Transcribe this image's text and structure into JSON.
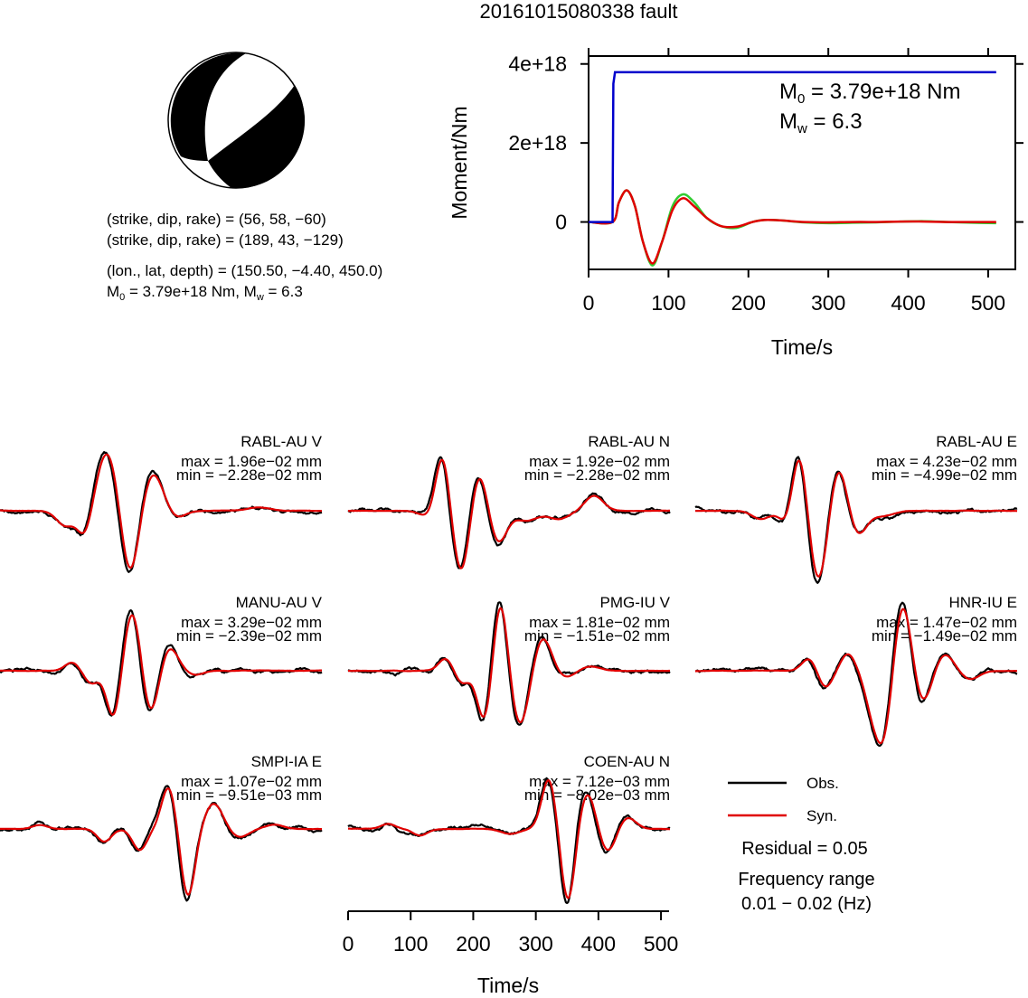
{
  "title": "20161015080338 fault",
  "mechanism": {
    "lines": [
      "(strike, dip, rake) = (56, 58, −60)",
      "(strike, dip, rake) = (189, 43, −129)",
      "(lon., lat, depth) = (150.50, −4.40, 450.0)"
    ],
    "moment_line_prefix": "M",
    "moment_line_sub": "0",
    "moment_line_mid": " = 3.79e+18 Nm, M",
    "moment_line_sub2": "w",
    "moment_line_suffix": " = 6.3"
  },
  "moment_panel": {
    "ylabel": "Moment/Nm",
    "xlabel": "Time/s",
    "yticks": [
      "0",
      "2e+18",
      "4e+18"
    ],
    "xticks": [
      "0",
      "100",
      "200",
      "300",
      "400",
      "500"
    ],
    "m0_prefix": "M",
    "m0_sub": "0",
    "m0_value": " = 3.79e+18 Nm",
    "mw_prefix": "M",
    "mw_sub": "w",
    "mw_value": " = 6.3"
  },
  "waveform_panels": [
    {
      "station": "RABL-AU V",
      "max": "max = 1.96e−02 mm",
      "min": "min = −2.28e−02 mm"
    },
    {
      "station": "RABL-AU N",
      "max": "max = 1.92e−02 mm",
      "min": "min = −2.28e−02 mm"
    },
    {
      "station": "RABL-AU E",
      "max": "max = 4.23e−02 mm",
      "min": "min = −4.99e−02 mm"
    },
    {
      "station": "MANU-AU V",
      "max": "max = 3.29e−02 mm",
      "min": "min = −2.39e−02 mm"
    },
    {
      "station": "PMG-IU V",
      "max": "max = 1.81e−02 mm",
      "min": "min = −1.51e−02 mm"
    },
    {
      "station": "HNR-IU E",
      "max": "max = 1.47e−02 mm",
      "min": "min = −1.49e−02 mm"
    },
    {
      "station": "SMPI-IA E",
      "max": "max = 1.07e−02 mm",
      "min": "min = −9.51e−03 mm"
    },
    {
      "station": "COEN-AU N",
      "max": "max = 7.12e−03 mm",
      "min": "min = −8.02e−03 mm"
    }
  ],
  "bottom_axis": {
    "xlabel": "Time/s",
    "xticks": [
      "0",
      "100",
      "200",
      "300",
      "400",
      "500"
    ]
  },
  "legend": {
    "obs": "Obs.",
    "syn": "Syn."
  },
  "residual": "Residual = 0.05",
  "frequency_label": "Frequency range",
  "frequency_value": "0.01 − 0.02 (Hz)",
  "colors": {
    "obs": "#000000",
    "syn": "#e00000",
    "moment": "#0000cc",
    "stf_green": "#33cc33",
    "stf_red": "#e00000"
  },
  "chart_data": [
    {
      "type": "line",
      "title": "",
      "xlabel": "Time/s",
      "ylabel": "Moment/Nm",
      "xlim": [
        0,
        510
      ],
      "ylim": [
        -1.2e+18,
        4.2e+18
      ],
      "series": [
        {
          "name": "moment",
          "x": [
            0,
            30,
            31,
            33,
            510
          ],
          "y": [
            0,
            0,
            3.5e+18,
            3.79e+18,
            3.79e+18
          ]
        },
        {
          "name": "",
          "x": [
            0,
            30,
            38,
            48,
            58,
            68,
            80,
            92,
            105,
            118,
            132,
            148,
            165,
            185,
            205,
            220,
            240,
            270,
            300,
            330,
            360,
            390,
            420,
            450,
            480,
            510
          ],
          "y": [
            0,
            0,
            5e+17,
            8e+17,
            4e+17,
            -5e+17,
            -1.1e+18,
            -5e+17,
            4e+17,
            7e+17,
            5e+17,
            1e+17,
            -1e+17,
            -1.5e+17,
            0,
            5e+16,
            4e+16,
            -1e+16,
            -3e+16,
            -2e+16,
            -1e+16,
            1e+16,
            2e+16,
            0,
            -2e+16,
            -3e+16
          ]
        },
        {
          "name": "",
          "x": [
            0,
            30,
            38,
            48,
            58,
            68,
            80,
            92,
            105,
            118,
            132,
            148,
            165,
            185,
            205,
            220,
            240,
            270,
            300,
            330,
            360,
            390,
            420,
            450,
            480,
            510
          ],
          "y": [
            0,
            0,
            5e+17,
            8e+17,
            4e+17,
            -5e+17,
            -1.05e+18,
            -5e+17,
            3e+17,
            6e+17,
            4e+17,
            1e+17,
            -1e+17,
            -1.2e+17,
            0,
            5e+16,
            4e+16,
            0,
            -1e+16,
            0,
            0,
            1e+16,
            1e+16,
            0,
            0,
            0
          ]
        }
      ]
    }
  ]
}
